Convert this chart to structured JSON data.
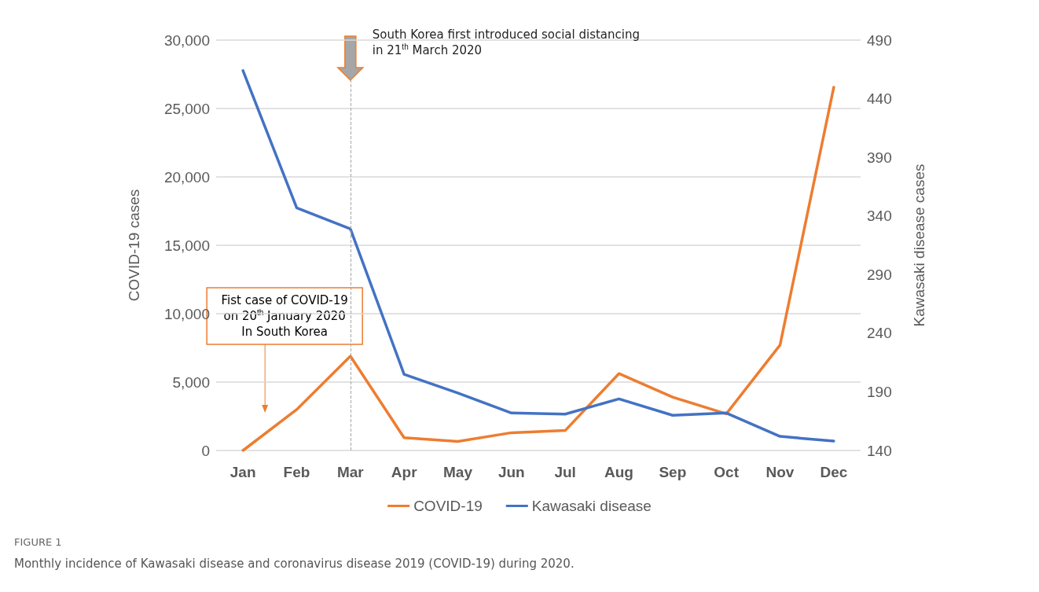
{
  "chart_data": {
    "type": "line",
    "xlabel": null,
    "ylabel": "COVID-19 cases",
    "y2label": "Kawasaki disease cases",
    "categories": [
      "Jan",
      "Feb",
      "Mar",
      "Apr",
      "May",
      "Jun",
      "Jul",
      "Aug",
      "Sep",
      "Oct",
      "Nov",
      "Dec"
    ],
    "series": [
      {
        "name": "COVID-19",
        "color": "#ed7d31",
        "values": [
          0,
          2990,
          6900,
          930,
          660,
          1300,
          1460,
          5620,
          3900,
          2680,
          7710,
          26550
        ]
      },
      {
        "name": "Kawasaki disease",
        "color": "#4472c4",
        "axis": "y2",
        "values": [
          464,
          347,
          329,
          205,
          189,
          172,
          171,
          184,
          170,
          172,
          152,
          148
        ]
      }
    ],
    "ylim": [
      0,
      30000
    ],
    "yticks": [
      0,
      {
        "value": 5000,
        "label": "5,000"
      },
      {
        "value": 10000,
        "label": "10,000"
      },
      {
        "value": 15000,
        "label": "15,000"
      },
      {
        "value": 20000,
        "label": "20,000"
      },
      {
        "value": 25000,
        "label": "25,000"
      },
      {
        "value": 30000,
        "label": "30,000"
      }
    ],
    "y2lim": [
      140,
      490
    ],
    "y2ticks": [
      140,
      190,
      240,
      290,
      340,
      390,
      440,
      490
    ],
    "grid": "y",
    "legend": "bottom",
    "marker": "none",
    "line_style": "solid",
    "ref_lines": [
      {
        "axis": "x",
        "value": "Mar",
        "label": "South Korea first introduced social distancing\nin 21$^{th}$ March 2020",
        "color": "#a6a6a6",
        "line_style": "dashed"
      }
    ],
    "annotations": [
      "Fist case of COVID-19\non 20$^{th}$ January 2020\nIn South Korea",
      "FIGURE 1",
      "Monthly incidence of Kawasaki disease and coronavirus disease 2019 (COVID-19) during 2020."
    ]
  }
}
